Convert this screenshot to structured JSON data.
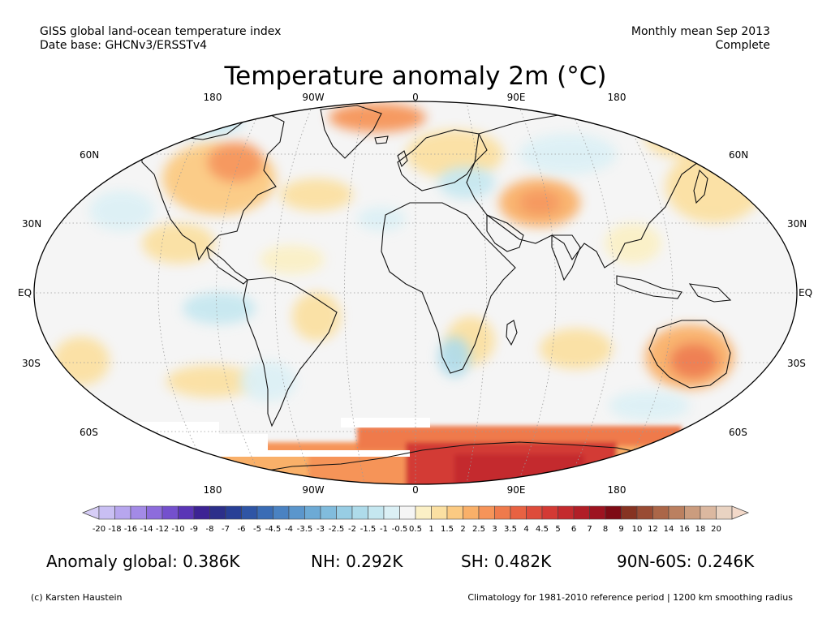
{
  "header": {
    "left_line1": "GISS global land-ocean temperature index",
    "left_line2": "Date base: GHCNv3/ERSSTv4",
    "right_line1": "Monthly mean Sep 2013",
    "right_line2": "Complete"
  },
  "title": "Temperature anomaly 2m (°C)",
  "longitude_labels": [
    "180",
    "90W",
    "0",
    "90E",
    "180"
  ],
  "latitude_labels": [
    "60N",
    "30N",
    "EQ",
    "30S",
    "60S"
  ],
  "colorbar": {
    "ticks": [
      "-20",
      "-18",
      "-16",
      "-14",
      "-12",
      "-10",
      "-9",
      "-8",
      "-7",
      "-6",
      "-5",
      "-4.5",
      "-4",
      "-3.5",
      "-3",
      "-2.5",
      "-2",
      "-1.5",
      "-1",
      "-0.5",
      "0.5",
      "1",
      "1.5",
      "2",
      "2.5",
      "3",
      "3.5",
      "4",
      "4.5",
      "5",
      "6",
      "7",
      "8",
      "9",
      "10",
      "12",
      "14",
      "16",
      "18",
      "20"
    ],
    "colors": [
      "#c9bff3",
      "#b7a6ee",
      "#a38ae6",
      "#8d6cdc",
      "#7450cd",
      "#5a35b6",
      "#3d2394",
      "#2c2f8a",
      "#283f96",
      "#2f55a5",
      "#3a6cb5",
      "#4a82c2",
      "#5b96cc",
      "#6daad5",
      "#81bcdd",
      "#98cde4",
      "#aedbea",
      "#c5e7f0",
      "#dbf0f5",
      "#f5f5f5",
      "#fbf0c6",
      "#fbe0a2",
      "#fbca82",
      "#f9b069",
      "#f69459",
      "#ef7a4c",
      "#e86242",
      "#de4c3b",
      "#d33a34",
      "#c42a2d",
      "#b11e27",
      "#9d1320",
      "#7e0b15",
      "#863322",
      "#994b33",
      "#ab6648",
      "#bb8060",
      "#cb9c7e",
      "#dbb8a0",
      "#e9d3c2"
    ],
    "under_color": "#d6cdf6",
    "over_color": "#f3d9c9"
  },
  "stats": {
    "global": "Anomaly global: 0.386K",
    "nh": "NH: 0.292K",
    "sh": "SH: 0.482K",
    "band": "90N-60S: 0.246K"
  },
  "footer": {
    "left": "(c) Karsten Haustein",
    "right": "Climatology for 1981-2010 reference period | 1200 km smoothing radius"
  }
}
